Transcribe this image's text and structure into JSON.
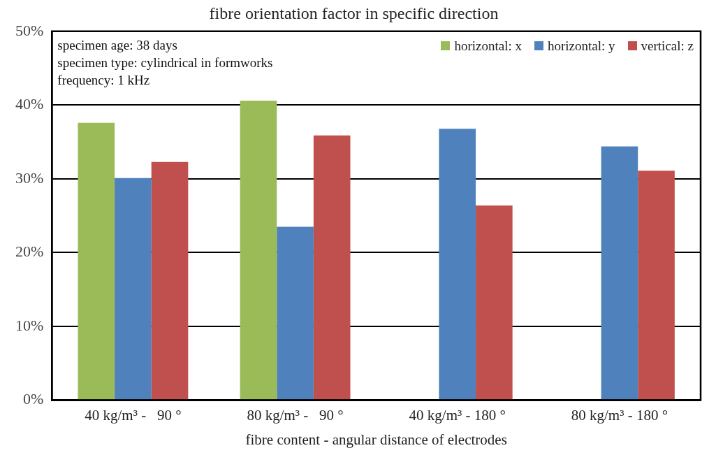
{
  "chart_data": {
    "type": "bar",
    "title": "fibre orientation factor in specific direction",
    "xlabel": "fibre content - angular distance of electrodes",
    "categories": [
      "40 kg/m³ -   90 °",
      "80 kg/m³ -   90 °",
      "40 kg/m³ - 180 °",
      "80 kg/m³ - 180 °"
    ],
    "series": [
      {
        "name": "horizontal: x",
        "color": "#9bbb59",
        "values": [
          37.6,
          40.6,
          null,
          null
        ]
      },
      {
        "name": "horizontal: y",
        "color": "#4f81bd",
        "values": [
          30.1,
          23.5,
          36.8,
          34.4
        ]
      },
      {
        "name": "vertical: z",
        "color": "#c0504d",
        "values": [
          32.3,
          35.9,
          26.4,
          31.1
        ]
      }
    ],
    "ylim": [
      0,
      50
    ],
    "yticks": [
      {
        "value": 0,
        "label": "0%"
      },
      {
        "value": 10,
        "label": "10%"
      },
      {
        "value": 20,
        "label": "20%"
      },
      {
        "value": 30,
        "label": "30%"
      },
      {
        "value": 40,
        "label": "40%"
      },
      {
        "value": 50,
        "label": "50%"
      }
    ],
    "grid": "y",
    "legend": "top right",
    "annotations": [
      "specimen age: 38 days",
      "specimen type: cylindrical in formworks",
      "frequency: 1 kHz"
    ]
  }
}
